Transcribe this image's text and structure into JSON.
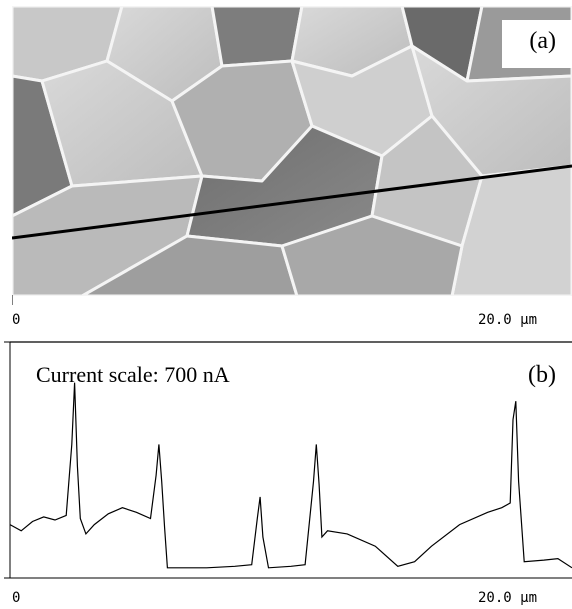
{
  "chart_data": [
    {
      "type": "image",
      "panel_label": "(a)",
      "x_axis": {
        "min_label": "0",
        "max_label": "20.0 µm"
      },
      "profile_line": {
        "description": "line-scan position"
      }
    },
    {
      "type": "line",
      "panel_label": "(b)",
      "annotation": "Current scale: 700  nA",
      "x_axis": {
        "min_label": "0",
        "max_label": "20.0 µm",
        "range": [
          0,
          20
        ]
      },
      "ylim": [
        0,
        700
      ],
      "series": [
        {
          "x": [
            0,
            0.4,
            0.8,
            1.2,
            1.6,
            2.0,
            2.2,
            2.3,
            2.4,
            2.5,
            2.7,
            3.0,
            3.5,
            4.0,
            4.5,
            5.0,
            5.2,
            5.3,
            5.4,
            5.5,
            5.6,
            6.0,
            7.0,
            8.0,
            8.6,
            8.8,
            8.9,
            9.0,
            9.2,
            10.0,
            10.5,
            10.8,
            10.9,
            11.0,
            11.1,
            11.3,
            12.0,
            13.0,
            13.8,
            14.4,
            15.0,
            16.0,
            17.0,
            17.5,
            17.8,
            17.9,
            18.0,
            18.1,
            18.3,
            19.0,
            19.5,
            20.0
          ],
          "y": [
            160,
            140,
            170,
            185,
            175,
            190,
            420,
            620,
            350,
            180,
            130,
            160,
            195,
            215,
            200,
            180,
            320,
            420,
            300,
            150,
            20,
            20,
            20,
            25,
            30,
            180,
            250,
            120,
            20,
            25,
            30,
            300,
            420,
            290,
            120,
            140,
            130,
            90,
            25,
            40,
            90,
            160,
            200,
            215,
            230,
            500,
            560,
            300,
            40,
            45,
            50,
            20
          ]
        }
      ]
    }
  ]
}
